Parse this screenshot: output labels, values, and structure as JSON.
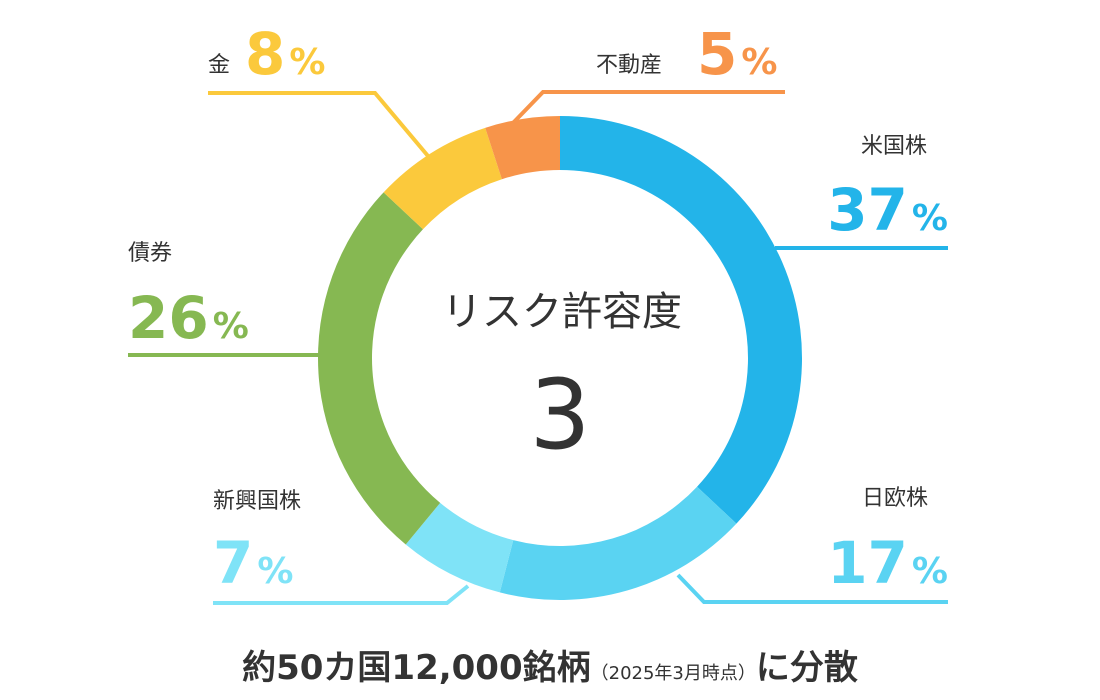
{
  "chart_data": {
    "type": "donut",
    "center": {
      "title": "リスク許容度",
      "value": "3"
    },
    "percent_symbol": "%",
    "series": [
      {
        "name": "米国株",
        "value": 37,
        "color": "#23B4E9"
      },
      {
        "name": "日欧株",
        "value": 17,
        "color": "#5AD3F2"
      },
      {
        "name": "新興国株",
        "value": 7,
        "color": "#7FE3F7"
      },
      {
        "name": "債券",
        "value": 26,
        "color": "#86B852"
      },
      {
        "name": "金",
        "value": 8,
        "color": "#FBC93C"
      },
      {
        "name": "不動産",
        "value": 5,
        "color": "#F7944A"
      }
    ]
  },
  "footer": {
    "main": "約50カ国12,000銘柄",
    "note": "（2025年3月時点）",
    "suffix": "に分散"
  }
}
